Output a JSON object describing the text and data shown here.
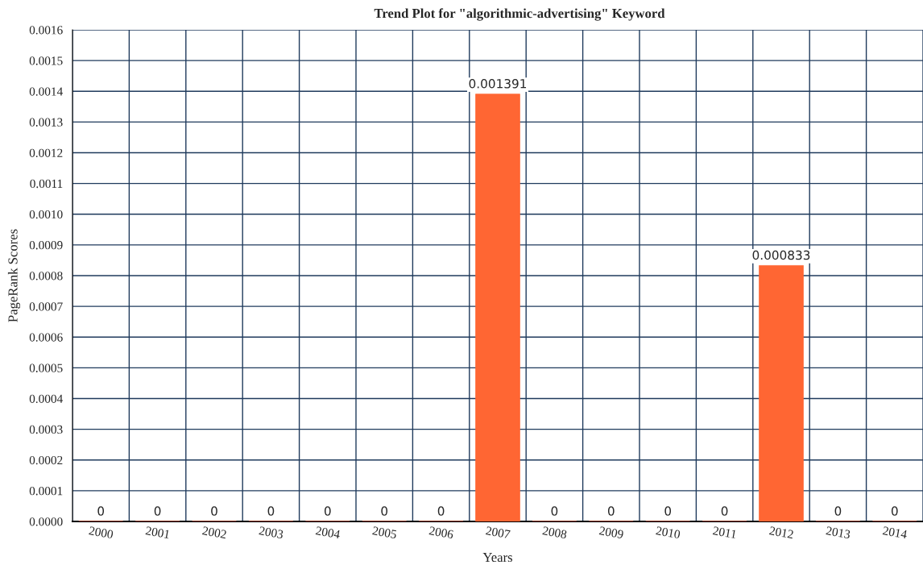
{
  "chart_data": {
    "type": "bar",
    "title": "Trend Plot for \"algorithmic-advertising\" Keyword",
    "xlabel": "Years",
    "ylabel": "PageRank Scores",
    "categories": [
      "2000",
      "2001",
      "2002",
      "2003",
      "2004",
      "2005",
      "2006",
      "2007",
      "2008",
      "2009",
      "2010",
      "2011",
      "2012",
      "2013",
      "2014"
    ],
    "values": [
      0,
      0,
      0,
      0,
      0,
      0,
      0,
      0.001391,
      0,
      0,
      0,
      0,
      0.000833,
      0,
      0
    ],
    "color": "#ff6633",
    "ylim": [
      0,
      0.0016
    ],
    "yticks": [
      {
        "value": 0,
        "label": "0.0000"
      },
      {
        "value": 0.0001,
        "label": "0.0001"
      },
      {
        "value": 0.0002,
        "label": "0.0002"
      },
      {
        "value": 0.0003,
        "label": "0.0003"
      },
      {
        "value": 0.0004,
        "label": "0.0004"
      },
      {
        "value": 0.0005,
        "label": "0.0005"
      },
      {
        "value": 0.0006,
        "label": "0.0006"
      },
      {
        "value": 0.0007,
        "label": "0.0007"
      },
      {
        "value": 0.0008,
        "label": "0.0008"
      },
      {
        "value": 0.0009,
        "label": "0.0009"
      },
      {
        "value": 0.001,
        "label": "0.0010"
      },
      {
        "value": 0.0011,
        "label": "0.0011"
      },
      {
        "value": 0.0012,
        "label": "0.0012"
      },
      {
        "value": 0.0013,
        "label": "0.0013"
      },
      {
        "value": 0.0014,
        "label": "0.0014"
      },
      {
        "value": 0.0015,
        "label": "0.0015"
      },
      {
        "value": 0.0016,
        "label": "0.0016"
      }
    ],
    "grid": true,
    "data_labels": true
  }
}
